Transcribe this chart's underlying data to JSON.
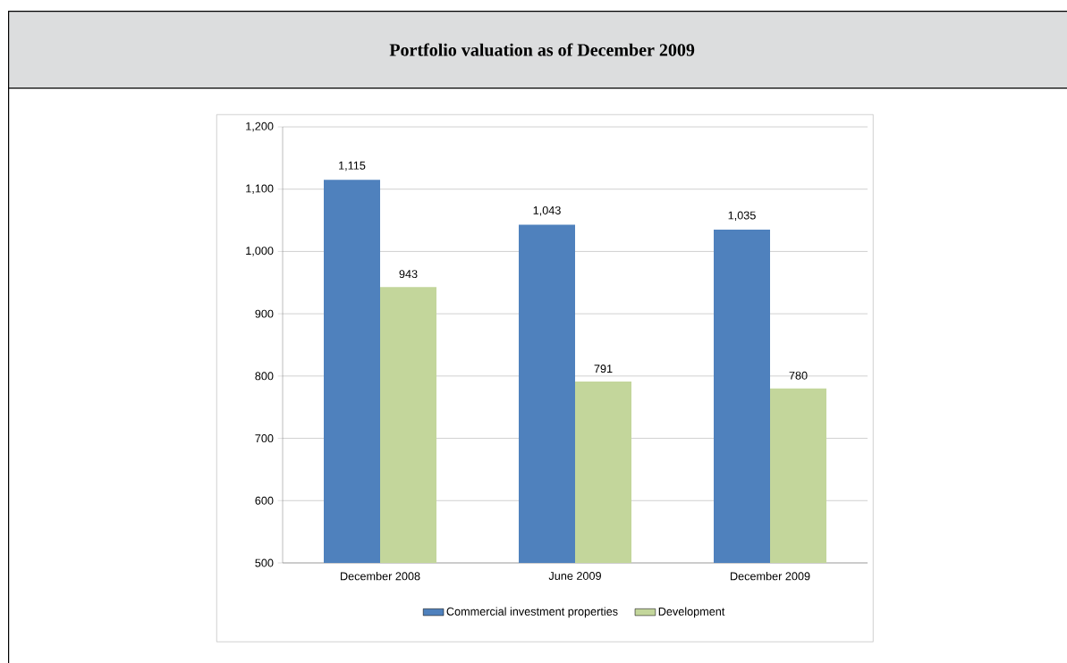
{
  "chart_data": {
    "type": "bar",
    "title": "Portfolio valuation as of December 2009",
    "categories": [
      "December 2008",
      "June 2009",
      "December 2009"
    ],
    "series": [
      {
        "name": "Commercial investment properties",
        "color": "#4f81bd",
        "values": [
          1115,
          1043,
          1035
        ],
        "value_labels": [
          "1,115",
          "1,043",
          "1,035"
        ]
      },
      {
        "name": "Development",
        "color": "#c3d69b",
        "values": [
          943,
          791,
          780
        ],
        "value_labels": [
          "943",
          "791",
          "780"
        ]
      }
    ],
    "ylim": [
      500,
      1200
    ],
    "yticks": [
      500,
      600,
      700,
      800,
      900,
      {
        "value": 1000,
        "label": "1,000"
      },
      {
        "value": 1100,
        "label": "1,100"
      },
      {
        "value": 1200,
        "label": "1,200"
      }
    ],
    "grid": "y",
    "legend": "bottom"
  }
}
